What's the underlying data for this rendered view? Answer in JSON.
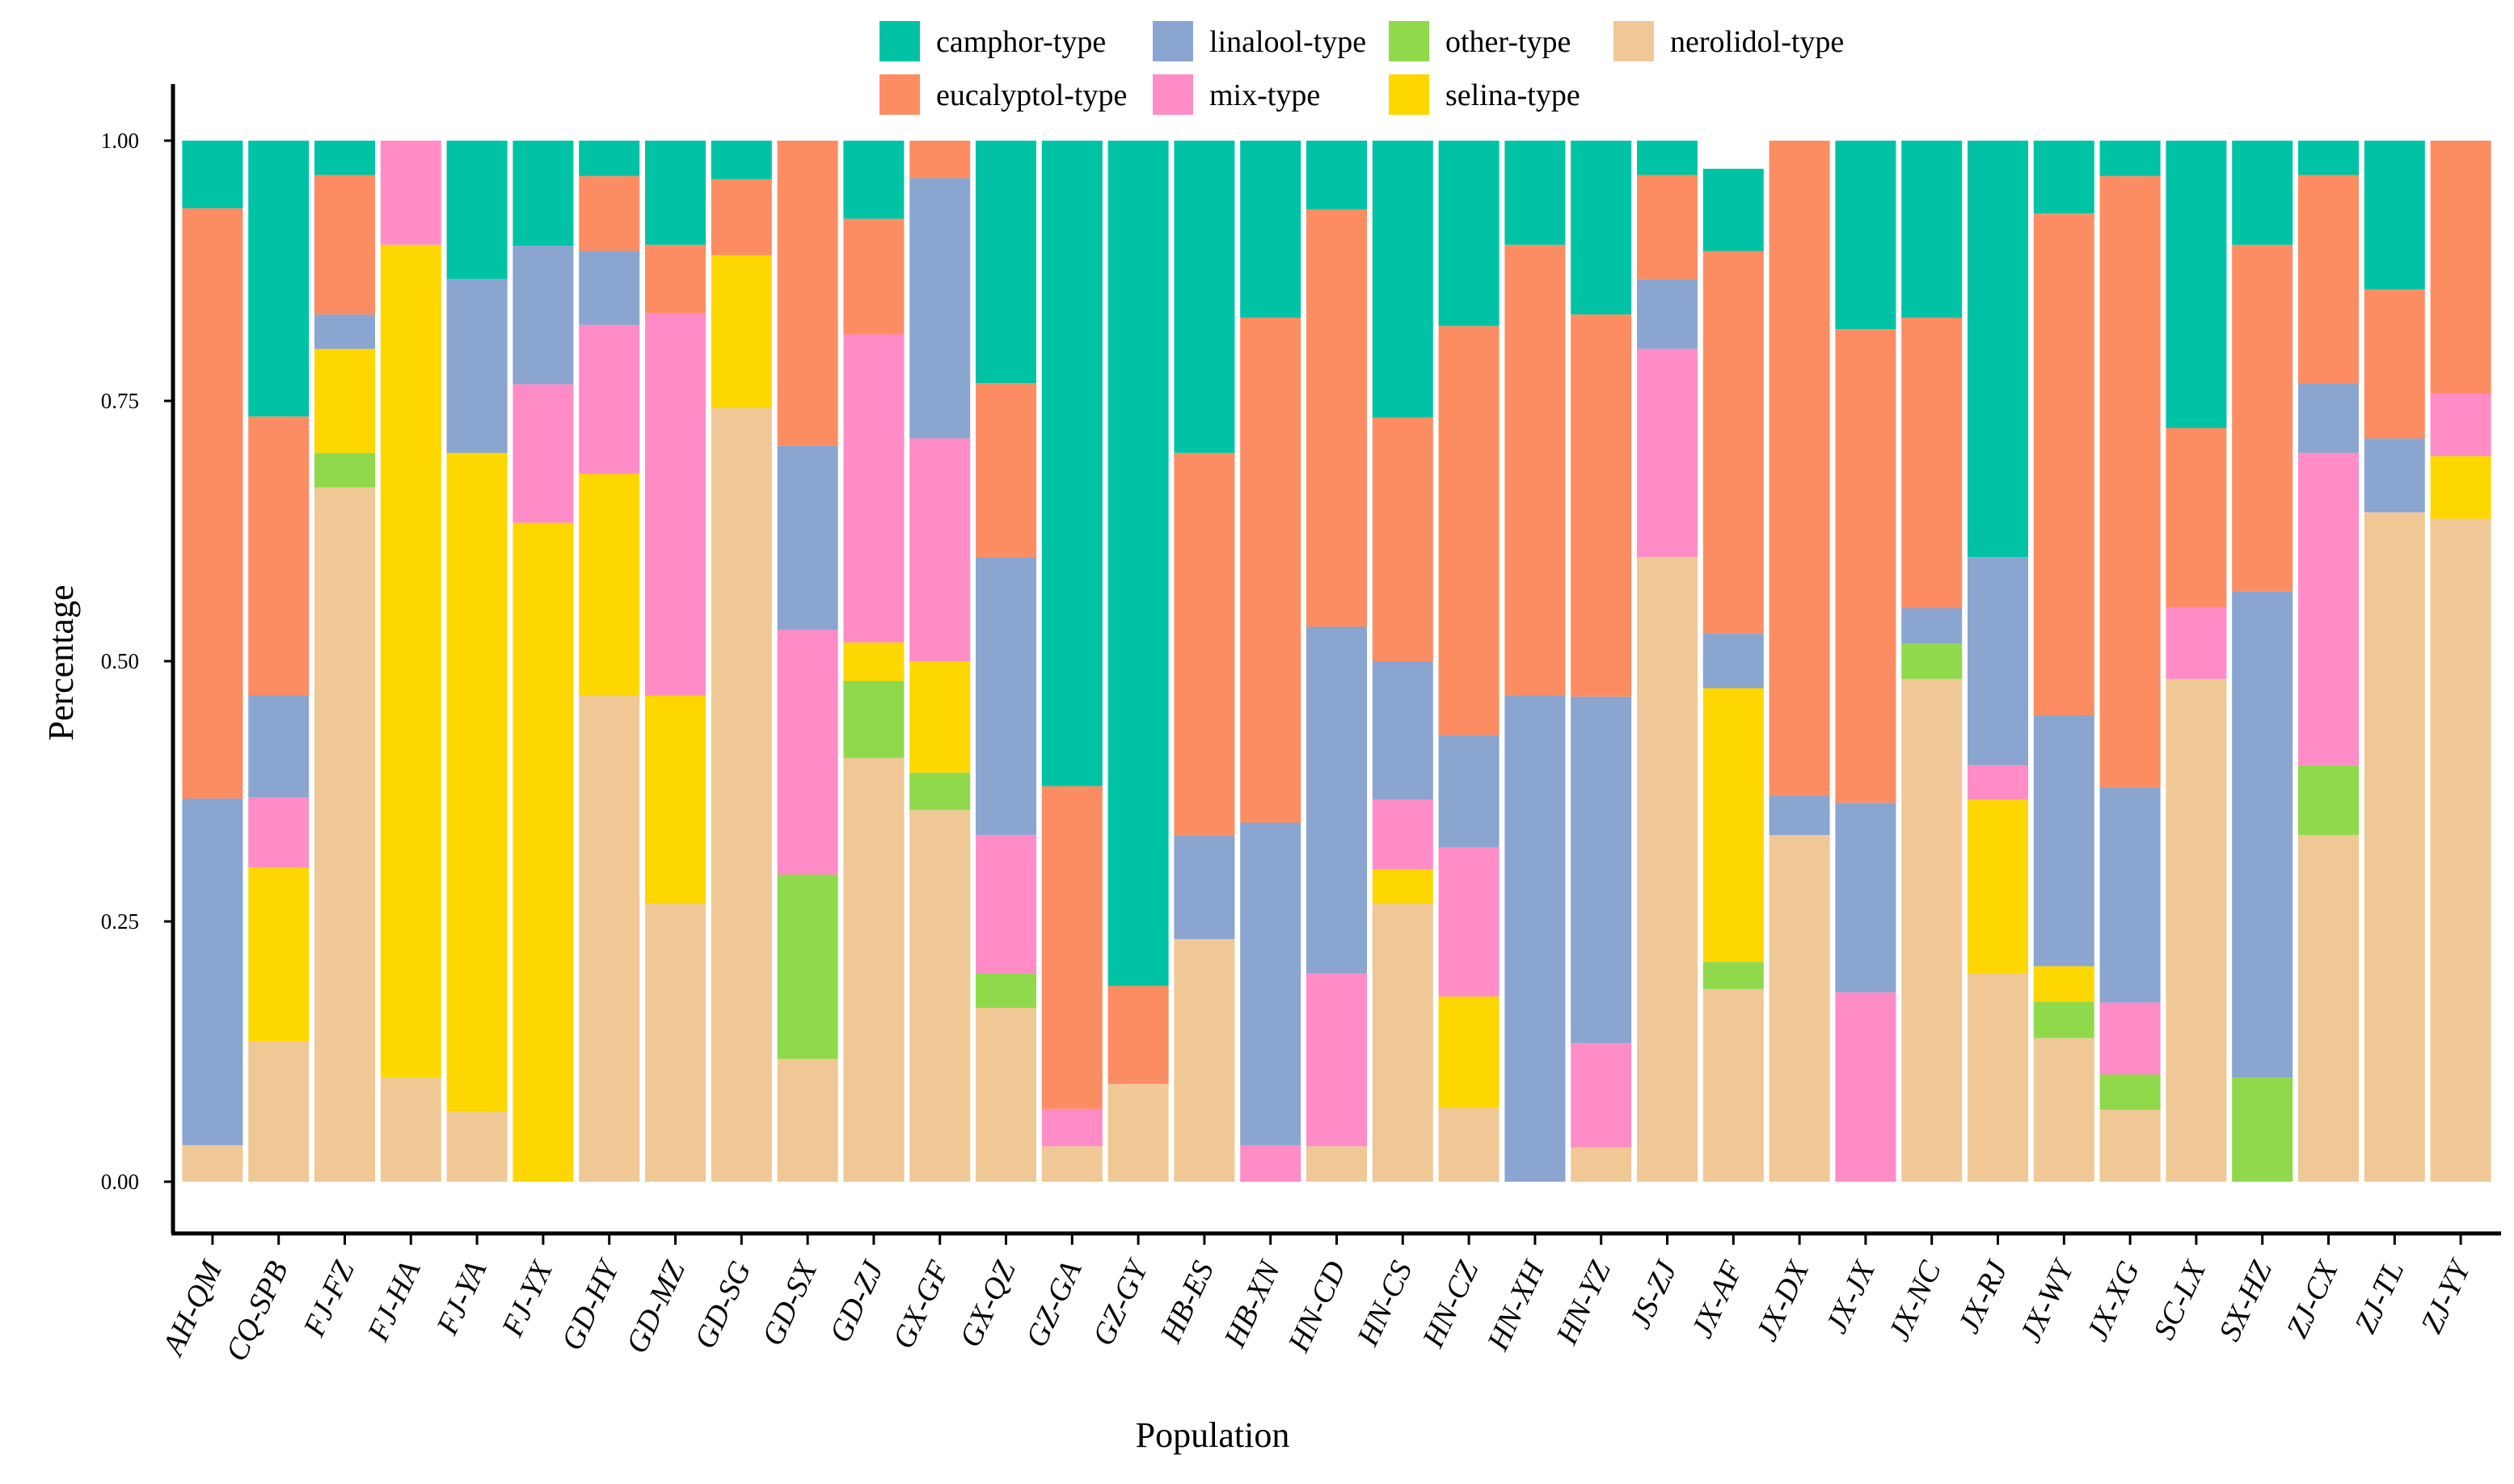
{
  "chart_data": {
    "type": "bar",
    "stacked": true,
    "title": "",
    "xlabel": "Population",
    "ylabel": "Percentage",
    "ylim": [
      0,
      1
    ],
    "yticks": [
      0,
      0.25,
      0.5,
      0.75,
      1
    ],
    "ytick_labels": [
      "0.00",
      "0.25",
      "0.50",
      "0.75",
      "1.00"
    ],
    "grid": false,
    "legend_position": "top",
    "categories": [
      "AH-QM",
      "CQ-SPB",
      "FJ-FZ",
      "FJ-HA",
      "FJ-YA",
      "FJ-YX",
      "GD-HY",
      "GD-MZ",
      "GD-SG",
      "GD-SX",
      "GD-ZJ",
      "GX-GF",
      "GX-QZ",
      "GZ-GA",
      "GZ-GY",
      "HB-ES",
      "HB-XN",
      "HN-CD",
      "HN-CS",
      "HN-CZ",
      "HN-XH",
      "HN-YZ",
      "JS-ZJ",
      "JX-AF",
      "JX-DX",
      "JX-JX",
      "JX-NC",
      "JX-RJ",
      "JX-WY",
      "JX-XG",
      "SC-LX",
      "SX-HZ",
      "ZJ-CX",
      "ZJ-TL",
      "ZJ-YY"
    ],
    "series": [
      {
        "name": "nerolidol-type",
        "color": "#F0C896",
        "values": [
          0.035,
          0.135,
          0.667,
          0.1,
          0.067,
          0.0,
          0.467,
          0.267,
          0.743,
          0.118,
          0.407,
          0.357,
          0.167,
          0.034,
          0.094,
          0.233,
          0.0,
          0.034,
          0.267,
          0.071,
          0.0,
          0.033,
          0.6,
          0.185,
          0.333,
          0.0,
          0.483,
          0.2,
          0.138,
          0.069,
          0.483,
          0.0,
          0.333,
          0.643,
          0.637
        ]
      },
      {
        "name": "other-type",
        "color": "#8FD94B",
        "values": [
          0,
          0,
          0.033,
          0,
          0,
          0,
          0,
          0,
          0,
          0.177,
          0.074,
          0.036,
          0.033,
          0,
          0,
          0,
          0,
          0,
          0,
          0,
          0,
          0,
          0,
          0.026,
          0,
          0,
          0.034,
          0,
          0.035,
          0.034,
          0,
          0.1,
          0.067,
          0,
          0
        ]
      },
      {
        "name": "selina-type",
        "color": "#FFD700",
        "values": [
          0,
          0.167,
          0.1,
          0.8,
          0.633,
          0.633,
          0.213,
          0.2,
          0.147,
          0,
          0.037,
          0.107,
          0,
          0,
          0,
          0,
          0,
          0,
          0.033,
          0.107,
          0,
          0,
          0,
          0.263,
          0,
          0,
          0,
          0.167,
          0.034,
          0,
          0,
          0,
          0,
          0,
          0.06
        ]
      },
      {
        "name": "mix-type",
        "color": "#FF8CC6",
        "values": [
          0,
          0.067,
          0,
          0.1,
          0,
          0.133,
          0.143,
          0.367,
          0,
          0.235,
          0.296,
          0.214,
          0.133,
          0.036,
          0,
          0,
          0.035,
          0.166,
          0.067,
          0.143,
          0,
          0.1,
          0.2,
          0,
          0,
          0.182,
          0,
          0.033,
          0,
          0.069,
          0.069,
          0,
          0.3,
          0,
          0.06
        ]
      },
      {
        "name": "linalool-type",
        "color": "#8AA5D0",
        "values": [
          0.333,
          0.098,
          0.033,
          0,
          0.167,
          0.133,
          0.071,
          0,
          0,
          0.177,
          0,
          0.25,
          0.267,
          0,
          0,
          0.1,
          0.31,
          0.333,
          0.133,
          0.108,
          0.467,
          0.333,
          0.067,
          0.053,
          0.038,
          0.182,
          0.034,
          0.2,
          0.241,
          0.207,
          0,
          0.467,
          0.067,
          0.071,
          0
        ]
      },
      {
        "name": "eucalyptol-type",
        "color": "#FC8D62",
        "values": [
          0.567,
          0.268,
          0.134,
          0,
          0,
          0,
          0.072,
          0.066,
          0.073,
          0.293,
          0.111,
          0.036,
          0.167,
          0.31,
          0.094,
          0.367,
          0.485,
          0.401,
          0.234,
          0.393,
          0.433,
          0.367,
          0.1,
          0.367,
          0.629,
          0.455,
          0.279,
          0,
          0.482,
          0.587,
          0.172,
          0.333,
          0.2,
          0.143,
          0.243
        ]
      },
      {
        "name": "camphor-type",
        "color": "#00C3A5",
        "values": [
          0.065,
          0.265,
          0.033,
          0,
          0.133,
          0.101,
          0.034,
          0.1,
          0.037,
          0,
          0.075,
          0,
          0.233,
          0.62,
          0.812,
          0.3,
          0.17,
          0.066,
          0.266,
          0.178,
          0.1,
          0.167,
          0.033,
          0.079,
          0,
          0.181,
          0.17,
          0.4,
          0.07,
          0.034,
          0.276,
          0.1,
          0.033,
          0.143,
          0
        ]
      }
    ],
    "legend": {
      "entries": [
        {
          "name": "camphor-type",
          "color": "#00C3A5"
        },
        {
          "name": "eucalyptol-type",
          "color": "#FC8D62"
        },
        {
          "name": "linalool-type",
          "color": "#8AA5D0"
        },
        {
          "name": "mix-type",
          "color": "#FF8CC6"
        },
        {
          "name": "other-type",
          "color": "#8FD94B"
        },
        {
          "name": "selina-type",
          "color": "#FFD700"
        },
        {
          "name": "nerolidol-type",
          "color": "#F0C896"
        }
      ]
    }
  }
}
